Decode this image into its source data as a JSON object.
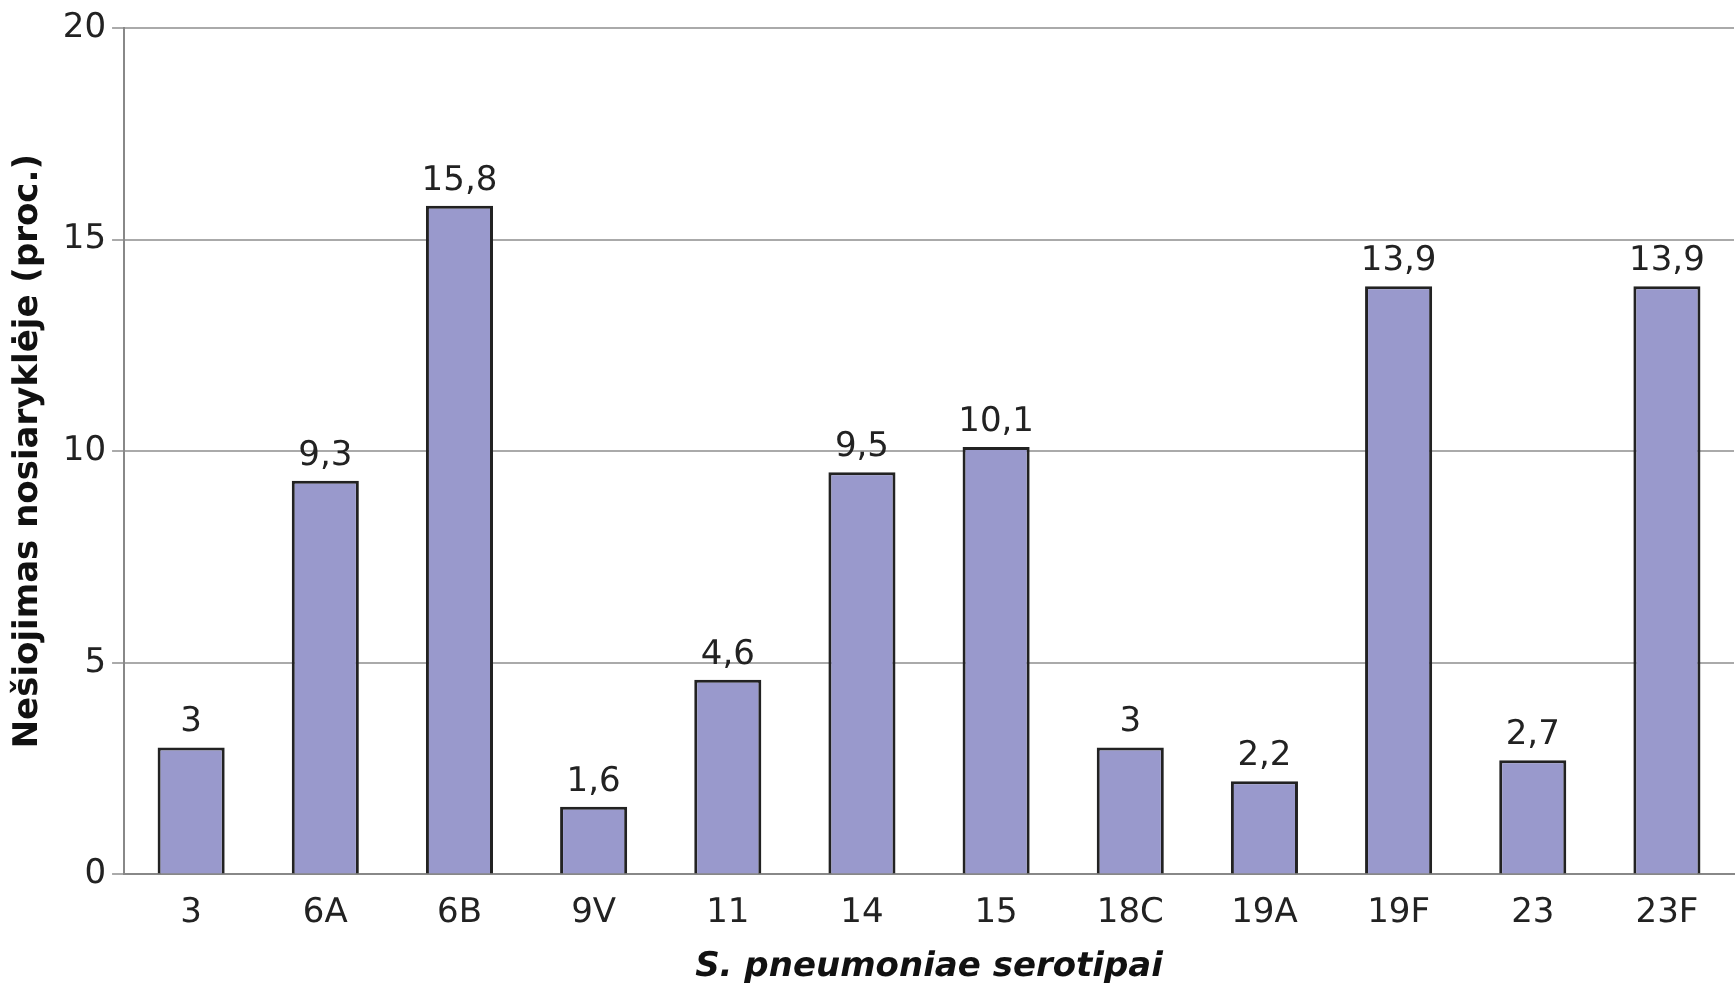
{
  "chart_data": {
    "type": "bar",
    "xlabel": "S. pneumoniae serotipai",
    "ylabel": "Nešiojimas nosiaryklėje (proc.)",
    "categories": [
      "3",
      "6A",
      "6B",
      "9V",
      "11",
      "14",
      "15",
      "18C",
      "19A",
      "19F",
      "23",
      "23F"
    ],
    "values": [
      3,
      9.3,
      15.8,
      1.6,
      4.6,
      9.5,
      10.1,
      3,
      2.2,
      13.9,
      2.7,
      13.9
    ],
    "value_labels": [
      "3",
      "9,3",
      "15,8",
      "1,6",
      "4,6",
      "9,5",
      "10,1",
      "3",
      "2,2",
      "13,9",
      "2,7",
      "13,9"
    ],
    "color": "#9999cc",
    "ylim": [
      0,
      20
    ],
    "yticks": [
      0,
      5,
      10,
      15,
      20
    ],
    "grid": "y"
  }
}
